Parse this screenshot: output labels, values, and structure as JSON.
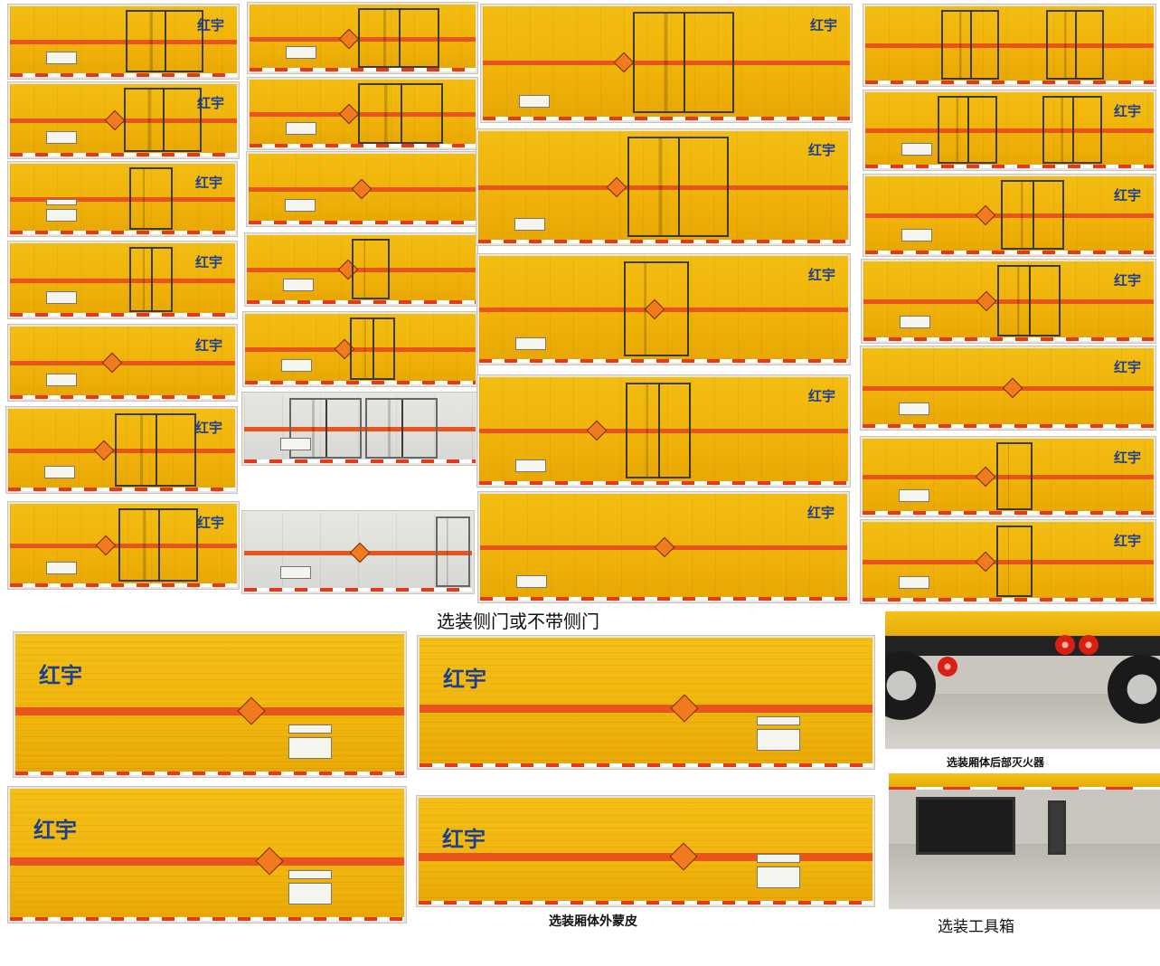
{
  "captions": {
    "side_door": "选装侧门或不带侧门",
    "rear_extinguisher": "选装厢体后部灭火器",
    "outer_skin": "选装厢体外蒙皮",
    "toolbox": "选装工具箱"
  },
  "logo_text": "红宇",
  "colors": {
    "box_yellow": "#f0b30a",
    "stripe_orange": "#e8541c",
    "background": "#ffffff",
    "grey_box": "#d7d7d4"
  }
}
